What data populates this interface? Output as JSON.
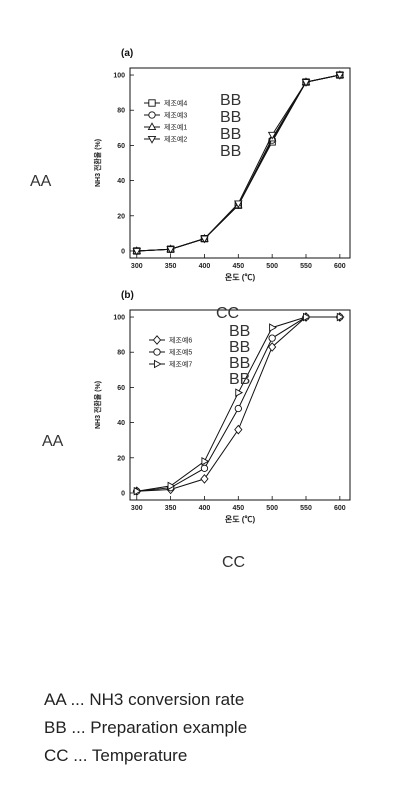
{
  "chart_data": [
    {
      "type": "line",
      "panel_label": "(a)",
      "xlabel": "온도 (℃)",
      "ylabel": "NH3 전환율 (%)",
      "x": [
        300,
        350,
        400,
        450,
        500,
        550,
        600
      ],
      "xlim": [
        290,
        615
      ],
      "ylim": [
        -4,
        104
      ],
      "yticks": [
        0,
        20,
        40,
        60,
        80,
        100
      ],
      "ytick_labels": [
        "0",
        "20",
        "40",
        "60",
        "80",
        "100"
      ],
      "legend_placement": "upper-left",
      "series": [
        {
          "name": "제조예4",
          "marker": "square",
          "values": [
            0,
            1,
            7,
            26,
            62,
            96,
            100
          ]
        },
        {
          "name": "제조예3",
          "marker": "circle",
          "values": [
            0,
            1,
            7,
            26,
            63,
            96,
            100
          ]
        },
        {
          "name": "제조예1",
          "marker": "triangle-up",
          "values": [
            0,
            1,
            7,
            26,
            64,
            96,
            100
          ]
        },
        {
          "name": "제조예2",
          "marker": "triangle-down",
          "values": [
            0,
            1,
            7,
            27,
            66,
            96,
            100
          ]
        }
      ]
    },
    {
      "type": "line",
      "panel_label": "(b)",
      "xlabel": "온도 (℃)",
      "ylabel": "NH3 전환율 (%)",
      "x": [
        300,
        350,
        400,
        450,
        500,
        550,
        600
      ],
      "xlim": [
        290,
        615
      ],
      "ylim": [
        -4,
        104
      ],
      "yticks": [
        0,
        20,
        40,
        60,
        80,
        100
      ],
      "ytick_labels": [
        "0",
        "20",
        "40",
        "60",
        "80",
        "100"
      ],
      "legend_placement": "upper-left",
      "series": [
        {
          "name": "제조예6",
          "marker": "diamond",
          "values": [
            1,
            2,
            8,
            36,
            83,
            100,
            100
          ]
        },
        {
          "name": "제조예5",
          "marker": "circle",
          "values": [
            1,
            3,
            14,
            48,
            88,
            100,
            100
          ]
        },
        {
          "name": "제조예7",
          "marker": "triangle-right",
          "values": [
            1,
            4,
            18,
            57,
            94,
            100,
            100
          ]
        }
      ]
    }
  ],
  "overlay_labels": {
    "panel_a_y": "AA",
    "panel_a_legend": [
      "BB",
      "BB",
      "BB",
      "BB"
    ],
    "panel_a_x": "CC",
    "panel_b_y": "AA",
    "panel_b_legend": [
      "BB",
      "BB",
      "BB",
      "BB"
    ],
    "panel_b_x": "CC"
  },
  "notes": [
    "AA ... NH3 conversion rate",
    "BB ... Preparation example",
    "CC ... Temperature"
  ]
}
